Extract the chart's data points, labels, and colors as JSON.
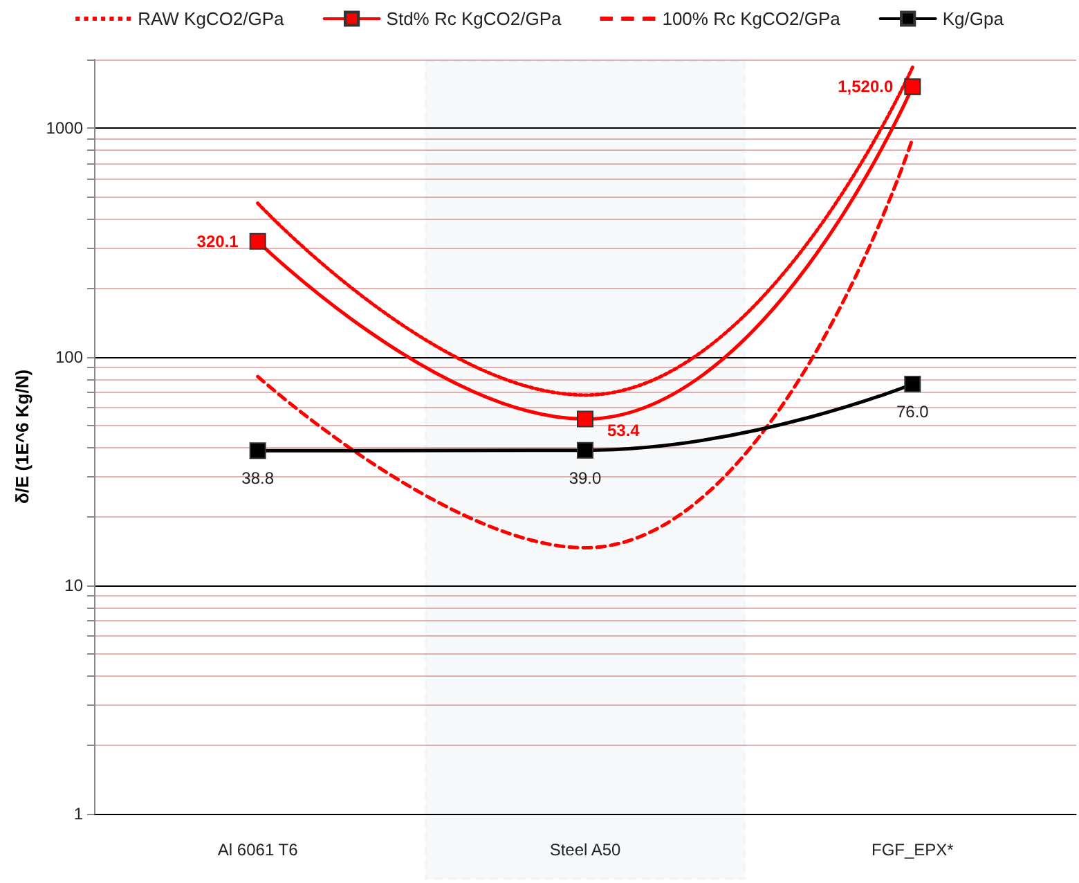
{
  "chart_data": {
    "type": "line",
    "ylabel": "δ/E (1E^6 Kg/N)",
    "categories": [
      "Al 6061 T6",
      "Steel A50",
      "FGF_EPX*"
    ],
    "series": [
      {
        "name": "RAW KgCO2/GPa",
        "color": "#ff0000",
        "values": [
          470,
          68,
          1850
        ],
        "line_style": "dotted",
        "marker": "none"
      },
      {
        "name": "Std% Rc KgCO2/GPa",
        "color": "#ff0000",
        "values": [
          320.1,
          53.4,
          1520.0
        ],
        "line_style": "solid",
        "marker": "square",
        "value_labels": [
          "320.1",
          "53.4",
          "1,520.0"
        ]
      },
      {
        "name": "100% Rc KgCO2/GPa",
        "color": "#ff0000",
        "values": [
          82,
          14.6,
          900
        ],
        "line_style": "dashed",
        "marker": "none"
      },
      {
        "name": "Kg/Gpa",
        "color": "#000000",
        "values": [
          38.8,
          39.0,
          76.0
        ],
        "line_style": "solid",
        "marker": "square",
        "value_labels": [
          "38.8",
          "39.0",
          "76.0"
        ]
      }
    ],
    "log": "y",
    "ylim": [
      1,
      2000
    ],
    "yticks": [
      1,
      {
        "value": 2,
        "label": null
      },
      {
        "value": 3,
        "label": null
      },
      {
        "value": 4,
        "label": null
      },
      {
        "value": 5,
        "label": null
      },
      {
        "value": 6,
        "label": null
      },
      {
        "value": 7,
        "label": null
      },
      {
        "value": 8,
        "label": null
      },
      {
        "value": 9,
        "label": null
      },
      10,
      {
        "value": 20,
        "label": null
      },
      {
        "value": 30,
        "label": null
      },
      {
        "value": 40,
        "label": null
      },
      {
        "value": 50,
        "label": null
      },
      {
        "value": 60,
        "label": null
      },
      {
        "value": 70,
        "label": null
      },
      {
        "value": 80,
        "label": null
      },
      {
        "value": 90,
        "label": null
      },
      100,
      {
        "value": 200,
        "label": null
      },
      {
        "value": 300,
        "label": null
      },
      {
        "value": 400,
        "label": null
      },
      {
        "value": 500,
        "label": null
      },
      {
        "value": 600,
        "label": null
      },
      {
        "value": 700,
        "label": null
      },
      {
        "value": 800,
        "label": null
      },
      {
        "value": 900,
        "label": null
      },
      1000,
      {
        "value": 2000,
        "label": null
      }
    ],
    "grid": "y",
    "legend": "top",
    "bands": [
      {
        "axis": "x",
        "from": "Steel A50",
        "to": "Steel A50",
        "color": "#2e5a7e"
      }
    ]
  }
}
